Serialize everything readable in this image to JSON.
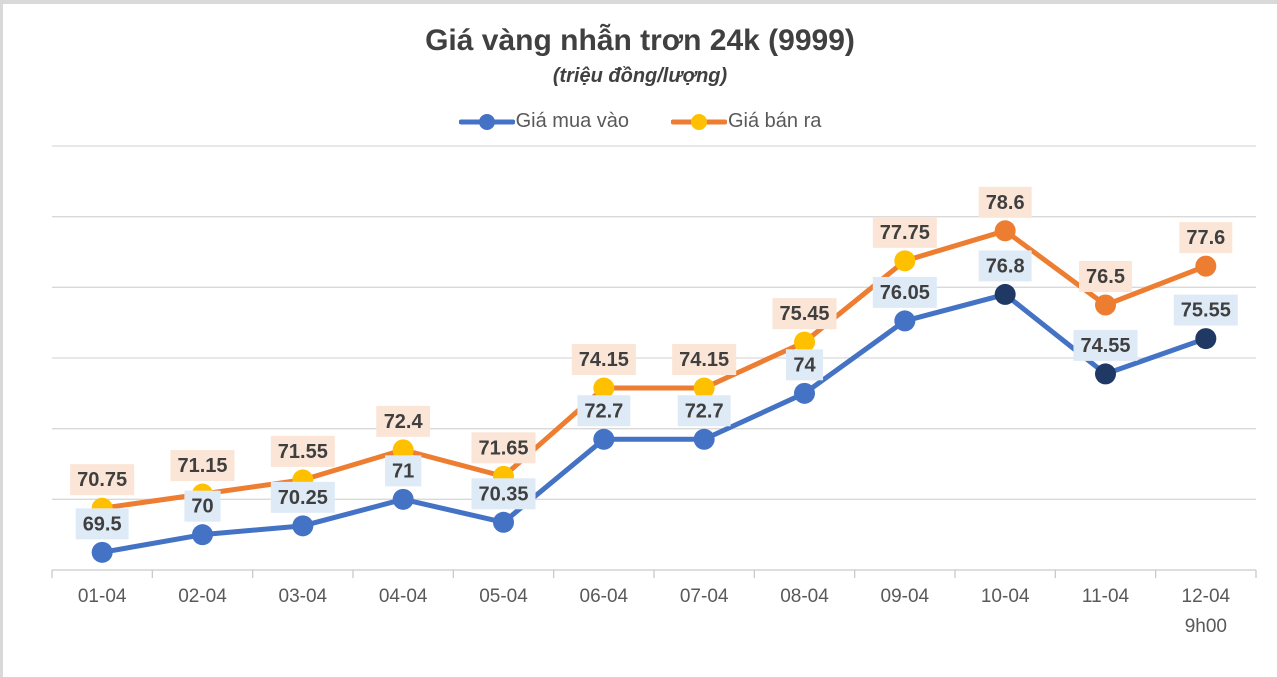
{
  "title": "Giá vàng nhẫn trơn 24k (9999)",
  "subtitle": "(triệu đồng/lượng)",
  "legend": {
    "position": "top",
    "items": [
      "Giá mua vào",
      "Giá bán ra"
    ]
  },
  "chart_data": {
    "type": "line",
    "title": "Giá vàng nhẫn trơn 24k (9999)",
    "subtitle": "(triệu đồng/lượng)",
    "unit": "triệu đồng/lượng",
    "categories": [
      "01-04",
      "02-04",
      "03-04",
      "04-04",
      "05-04",
      "06-04",
      "07-04",
      "08-04",
      "09-04",
      "10-04",
      "11-04",
      "12-04\n9h00"
    ],
    "series": [
      {
        "name": "Giá mua vào",
        "line_color": "#4472C4",
        "label_bg": "#DEEBF7",
        "values": [
          69.5,
          70,
          70.25,
          71,
          70.35,
          72.7,
          72.7,
          74,
          76.05,
          76.8,
          74.55,
          75.55
        ],
        "marker_colors": [
          "#4472C4",
          "#4472C4",
          "#4472C4",
          "#4472C4",
          "#4472C4",
          "#4472C4",
          "#4472C4",
          "#4472C4",
          "#4472C4",
          "#1F3864",
          "#1F3864",
          "#1F3864"
        ]
      },
      {
        "name": "Giá bán ra",
        "line_color": "#ED7D31",
        "label_bg": "#FBE5D6",
        "values": [
          70.75,
          71.15,
          71.55,
          72.4,
          71.65,
          74.15,
          74.15,
          75.45,
          77.75,
          78.6,
          76.5,
          77.6
        ],
        "marker_colors": [
          "#FFC000",
          "#FFC000",
          "#FFC000",
          "#FFC000",
          "#FFC000",
          "#FFC000",
          "#FFC000",
          "#FFC000",
          "#FFC000",
          "#ED7D31",
          "#ED7D31",
          "#ED7D31"
        ]
      }
    ],
    "ylim": [
      69,
      81
    ],
    "gridline_values": [
      71,
      73,
      75,
      77,
      79,
      81
    ],
    "y_axis_labels_visible": false,
    "grid": true,
    "legend_position": "top",
    "label_text_color": "#3F3F3F",
    "axis_text_color": "#595959",
    "gridline_color": "#D9D9D9",
    "axis_line_color": "#C9C9C9"
  }
}
